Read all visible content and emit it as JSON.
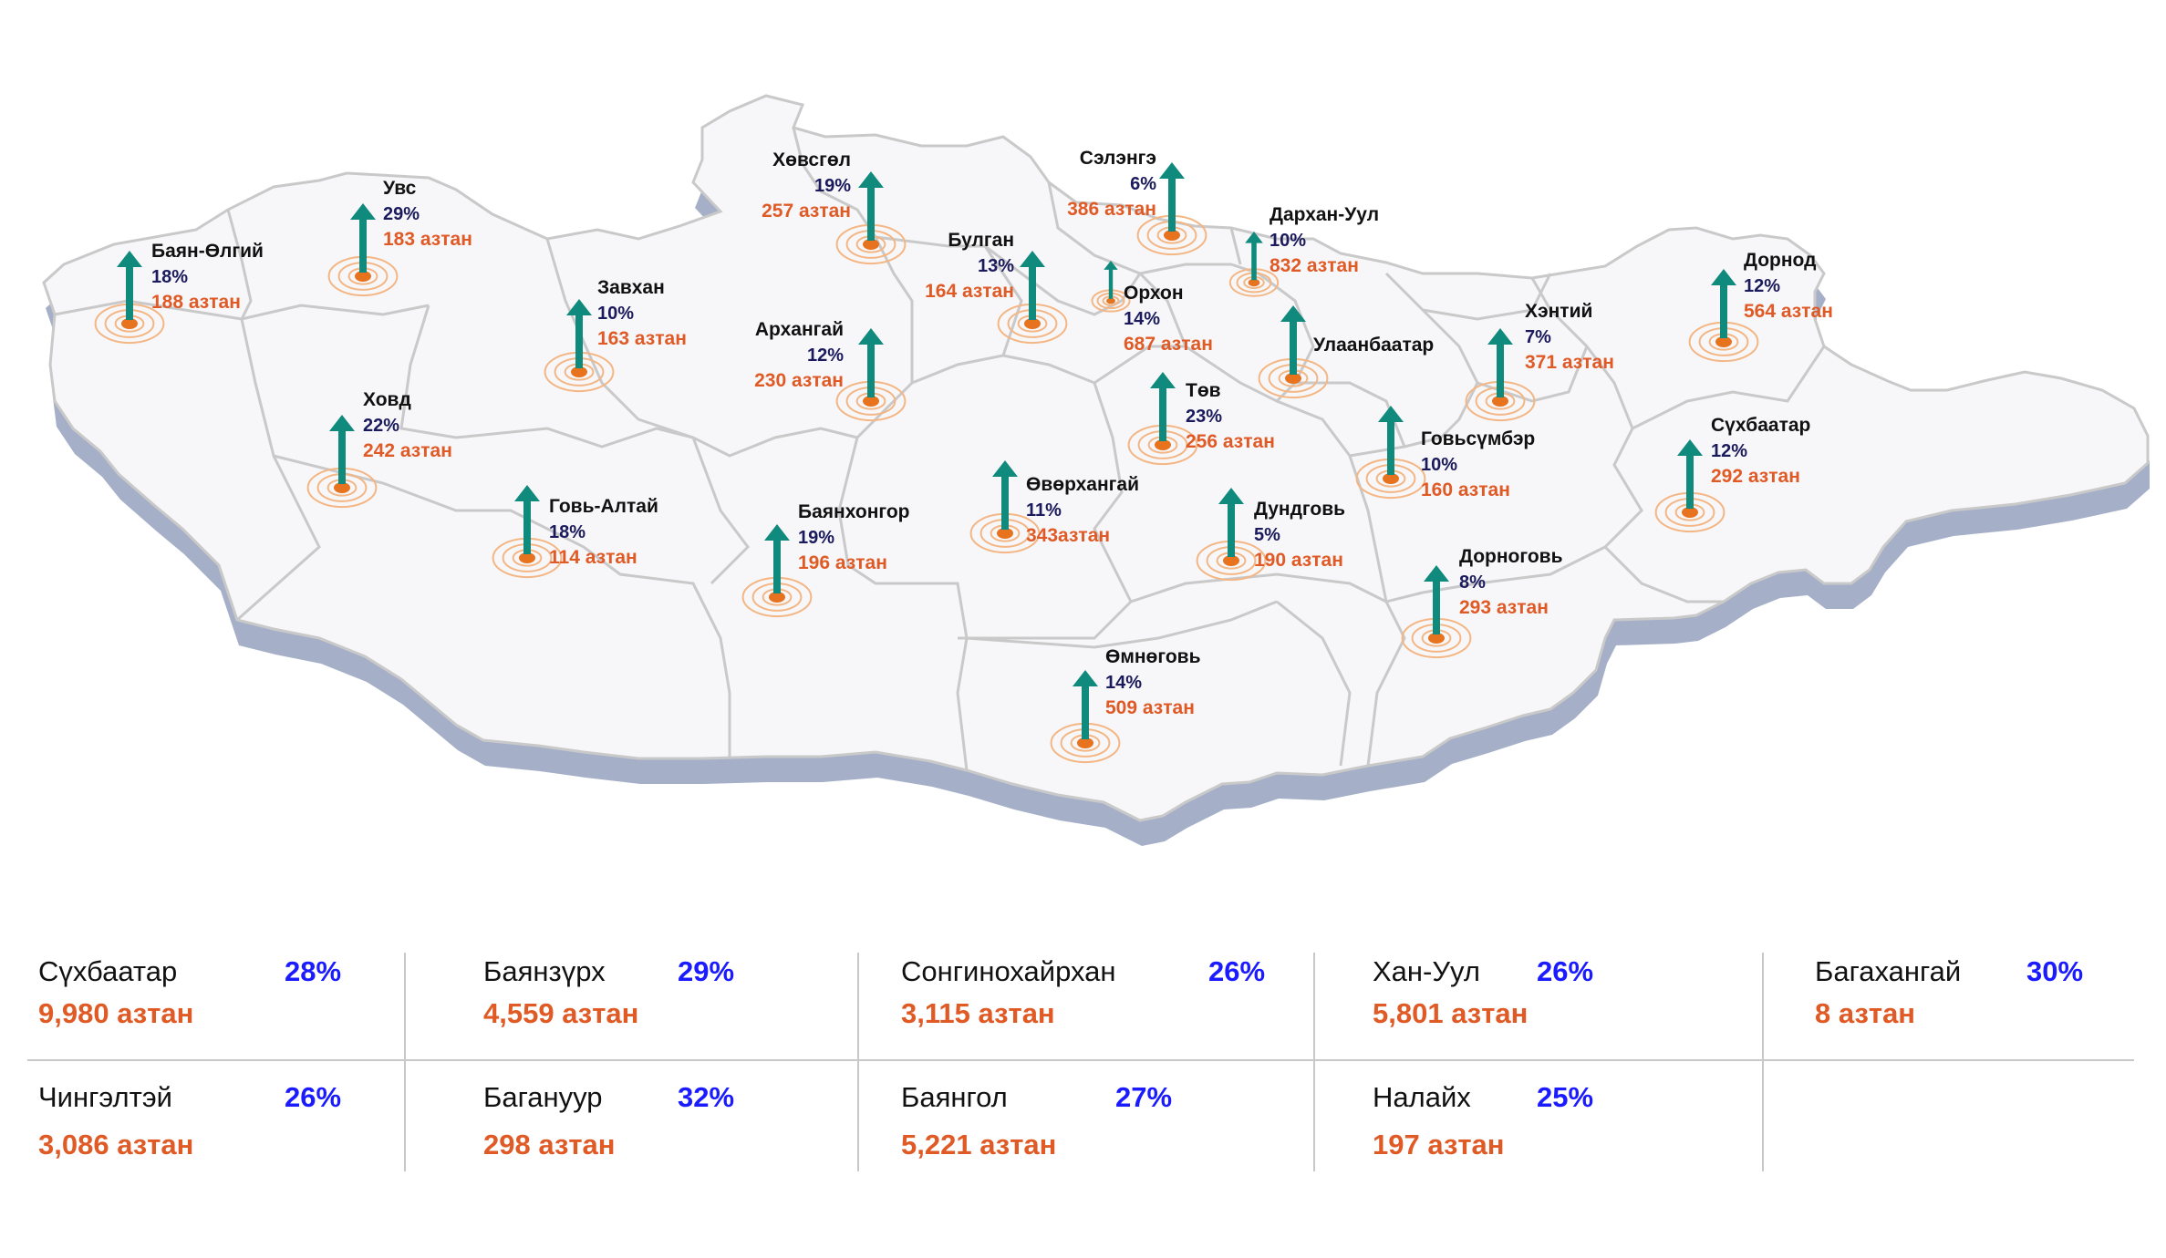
{
  "colors": {
    "map_fill": "#f7f7f9",
    "map_border": "#c9c9c9",
    "map_shadow": "#a5b0c8",
    "arrow": "#118a7e",
    "pin": "#e8731f",
    "ring": "#f3b684",
    "percent": "#1a1a5c",
    "count": "#e05a26",
    "table_percent": "#1b1bff"
  },
  "provinces": [
    {
      "name": "Баян-Өлгий",
      "pct": "18%",
      "count": "188 азтан"
    },
    {
      "name": "Увс",
      "pct": "29%",
      "count": "183 азтан"
    },
    {
      "name": "Ховд",
      "pct": "22%",
      "count": "242 азтан"
    },
    {
      "name": "Завхан",
      "pct": "10%",
      "count": "163 азтан"
    },
    {
      "name": "Говь-Алтай",
      "pct": "18%",
      "count": "114 азтан"
    },
    {
      "name": "Хөвсгөл",
      "pct": "19%",
      "count": "257 азтан"
    },
    {
      "name": "Архангай",
      "pct": "12%",
      "count": "230 азтан"
    },
    {
      "name": "Баянхонгор",
      "pct": "19%",
      "count": "196 азтан"
    },
    {
      "name": "Булган",
      "pct": "13%",
      "count": "164 азтан"
    },
    {
      "name": "Сэлэнгэ",
      "pct": "6%",
      "count": "386 азтан"
    },
    {
      "name": "Орхон",
      "pct": "14%",
      "count": "687 азтан"
    },
    {
      "name": "Дархан-Уул",
      "pct": "10%",
      "count": "832 азтан"
    },
    {
      "name": "Улаанбаатар",
      "pct": "",
      "count": ""
    },
    {
      "name": "Төв",
      "pct": "23%",
      "count": "256 азтан"
    },
    {
      "name": "Өвөрхангай",
      "pct": "11%",
      "count": "343азтан"
    },
    {
      "name": "Дундговь",
      "pct": "5%",
      "count": "190 азтан"
    },
    {
      "name": "Өмнөговь",
      "pct": "14%",
      "count": "509 азтан"
    },
    {
      "name": "Говьсүмбэр",
      "pct": "10%",
      "count": "160 азтан"
    },
    {
      "name": "Хэнтий",
      "pct": "7%",
      "count": "371 азтан"
    },
    {
      "name": "Дорнод",
      "pct": "12%",
      "count": "564 азтан"
    },
    {
      "name": "Сүхбаатар",
      "pct": "12%",
      "count": "292 азтан"
    },
    {
      "name": "Дорноговь",
      "pct": "8%",
      "count": "293 азтан"
    }
  ],
  "districts": [
    {
      "name": "Сүхбаатар",
      "pct": "28%",
      "count": "9,980 азтан"
    },
    {
      "name": "Баянзүрх",
      "pct": "29%",
      "count": "4,559  азтан"
    },
    {
      "name": "Сонгинохайрхан",
      "pct": "26%",
      "count": "3,115 азтан"
    },
    {
      "name": "Хан-Уул",
      "pct": "26%",
      "count": "5,801 азтан"
    },
    {
      "name": "Багахангай",
      "pct": "30%",
      "count": "8 азтан"
    },
    {
      "name": "Чингэлтэй",
      "pct": "26%",
      "count": "3,086 азтан"
    },
    {
      "name": "Багануур",
      "pct": "32%",
      "count": "298 азтан"
    },
    {
      "name": "Баянгол",
      "pct": "27%",
      "count": "5,221 азтан"
    },
    {
      "name": "Налайх",
      "pct": "25%",
      "count": "197 азтан"
    }
  ]
}
